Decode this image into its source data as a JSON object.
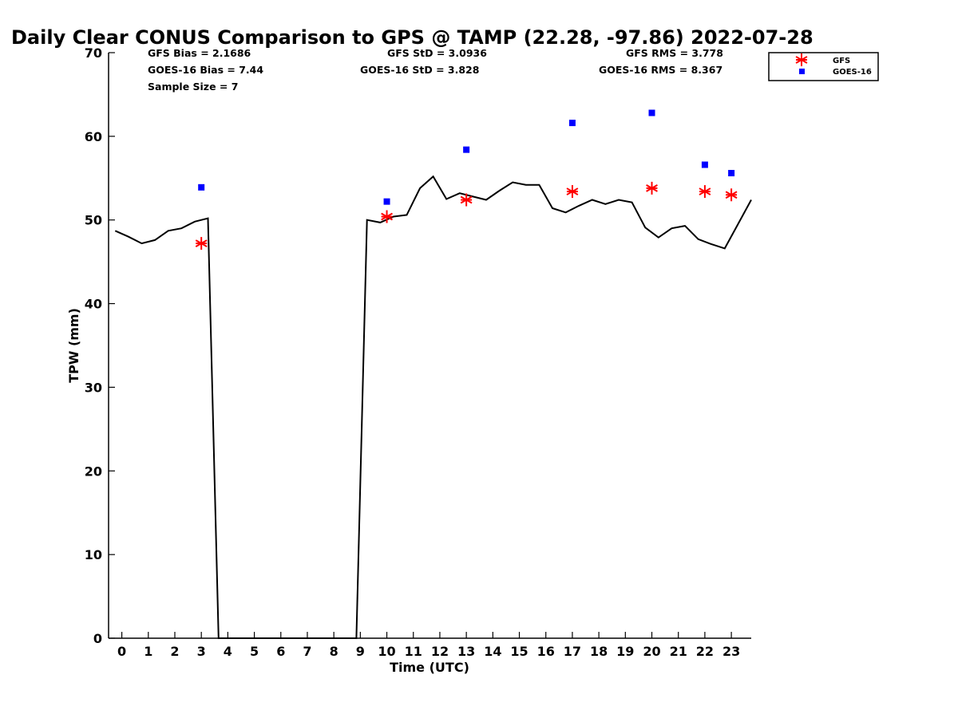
{
  "chart_data": {
    "type": "line",
    "title": "Daily Clear CONUS Comparison to GPS @ TAMP (22.28, -97.86) 2022-07-28",
    "xlabel": "Time (UTC)",
    "ylabel": "TPW (mm)",
    "xlim": [
      -0.5,
      23.75
    ],
    "ylim": [
      0,
      70
    ],
    "x_ticks": [
      0,
      1,
      2,
      3,
      4,
      5,
      6,
      7,
      8,
      9,
      10,
      11,
      12,
      13,
      14,
      15,
      16,
      17,
      18,
      19,
      20,
      21,
      22,
      23
    ],
    "y_ticks": [
      0,
      10,
      20,
      30,
      40,
      50,
      60,
      70
    ],
    "grid": false,
    "legend_position": "top-right",
    "stats": {
      "gfs_bias": "GFS Bias = 2.1686",
      "goes_bias": "GOES-16 Bias = 7.44",
      "sample_size": "Sample Size = 7",
      "gfs_std": "GFS StD = 3.0936",
      "goes_std": "GOES-16 StD = 3.828",
      "gfs_rms": "GFS RMS = 3.778",
      "goes_rms": "GOES-16 RMS = 8.367"
    },
    "gps_line": {
      "color": "#000000",
      "x": [
        -0.25,
        0.25,
        0.75,
        1.25,
        1.75,
        2.25,
        2.75,
        3.25,
        3.65,
        8.85,
        9.25,
        9.75,
        10.25,
        10.75,
        11.25,
        11.75,
        12.25,
        12.75,
        13.25,
        13.75,
        14.25,
        14.75,
        15.25,
        15.75,
        16.25,
        16.75,
        17.25,
        17.75,
        18.25,
        18.75,
        19.25,
        19.75,
        20.25,
        20.75,
        21.25,
        21.75,
        22.25,
        22.75,
        23.25,
        23.75
      ],
      "y": [
        48.7,
        48.0,
        47.2,
        47.6,
        48.7,
        49.0,
        49.8,
        50.2,
        0,
        0,
        50.0,
        49.7,
        50.4,
        50.6,
        53.8,
        55.2,
        52.5,
        53.2,
        52.8,
        52.4,
        53.5,
        54.5,
        54.2,
        54.2,
        51.4,
        50.9,
        51.7,
        52.4,
        51.9,
        52.4,
        52.1,
        49.1,
        47.9,
        49.0,
        49.3,
        47.7,
        47.1,
        46.6,
        49.5,
        52.4
      ]
    },
    "series": [
      {
        "name": "GFS",
        "marker": "asterisk",
        "color": "#ff0000",
        "x": [
          3,
          10,
          13,
          17,
          20,
          22,
          23
        ],
        "y": [
          47.2,
          50.4,
          52.4,
          53.4,
          53.8,
          53.4,
          53.0
        ]
      },
      {
        "name": "GOES-16",
        "marker": "square",
        "color": "#0000ff",
        "x": [
          3,
          10,
          13,
          17,
          20,
          22,
          23
        ],
        "y": [
          53.9,
          52.2,
          58.4,
          61.6,
          62.8,
          56.6,
          55.6
        ]
      }
    ]
  }
}
